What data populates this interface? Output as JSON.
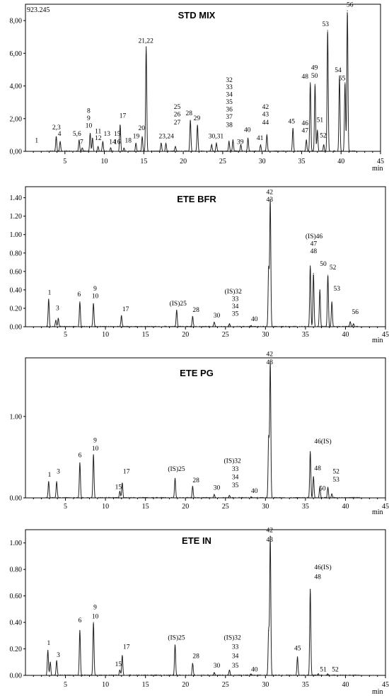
{
  "chart_data": [
    {
      "type": "line",
      "title": "STD MIX",
      "xlabel": "min",
      "xlim": [
        0,
        45
      ],
      "ylim": [
        0,
        9.0
      ],
      "x_ticks": [
        5,
        10,
        15,
        20,
        25,
        30,
        35,
        40,
        45
      ],
      "y_ticks": [
        0,
        2,
        4,
        6,
        8
      ],
      "y_tick_labels": [
        "0,00",
        "2,00",
        "4,00",
        "6,00",
        "8,00"
      ],
      "max_label": "923.245",
      "peaks": [
        {
          "rt": 3.9,
          "h": 0.9
        },
        {
          "rt": 4.4,
          "h": 0.6
        },
        {
          "rt": 6.8,
          "h": 0.7
        },
        {
          "rt": 7.2,
          "h": 0.2
        },
        {
          "rt": 8.2,
          "h": 1.1
        },
        {
          "rt": 8.5,
          "h": 0.8
        },
        {
          "rt": 9.2,
          "h": 0.3
        },
        {
          "rt": 9.8,
          "h": 0.6
        },
        {
          "rt": 10.8,
          "h": 0.2
        },
        {
          "rt": 12.0,
          "h": 1.6
        },
        {
          "rt": 12.5,
          "h": 0.2
        },
        {
          "rt": 14.0,
          "h": 0.5
        },
        {
          "rt": 14.8,
          "h": 0.9
        },
        {
          "rt": 15.3,
          "h": 6.4
        },
        {
          "rt": 17.2,
          "h": 0.5
        },
        {
          "rt": 17.8,
          "h": 0.5
        },
        {
          "rt": 19.0,
          "h": 0.3
        },
        {
          "rt": 20.9,
          "h": 1.9
        },
        {
          "rt": 21.8,
          "h": 1.6
        },
        {
          "rt": 23.6,
          "h": 0.4
        },
        {
          "rt": 24.2,
          "h": 0.5
        },
        {
          "rt": 25.8,
          "h": 0.6
        },
        {
          "rt": 26.3,
          "h": 0.7
        },
        {
          "rt": 27.3,
          "h": 0.4
        },
        {
          "rt": 28.2,
          "h": 0.8
        },
        {
          "rt": 29.8,
          "h": 0.4
        },
        {
          "rt": 30.6,
          "h": 1.0
        },
        {
          "rt": 33.9,
          "h": 1.4
        },
        {
          "rt": 35.6,
          "h": 0.7
        },
        {
          "rt": 36.1,
          "h": 4.2
        },
        {
          "rt": 36.7,
          "h": 4.1
        },
        {
          "rt": 37.0,
          "h": 1.3
        },
        {
          "rt": 37.8,
          "h": 0.4
        },
        {
          "rt": 38.3,
          "h": 7.4
        },
        {
          "rt": 39.8,
          "h": 4.6
        },
        {
          "rt": 40.5,
          "h": 4.2
        },
        {
          "rt": 40.8,
          "h": 8.6
        }
      ],
      "labels": [
        {
          "text": "1",
          "x": 1.2,
          "y": 0.55
        },
        {
          "text": "2,3",
          "x": 3.4,
          "y": 1.35
        },
        {
          "text": "4",
          "x": 4.1,
          "y": 0.95
        },
        {
          "text": "5,6",
          "x": 6.0,
          "y": 0.95
        },
        {
          "text": "7",
          "x": 6.9,
          "y": 0.45
        },
        {
          "text": "8",
          "x": 7.8,
          "y": 2.35
        },
        {
          "text": "9",
          "x": 7.8,
          "y": 1.9
        },
        {
          "text": "10",
          "x": 7.6,
          "y": 1.45
        },
        {
          "text": "11",
          "x": 8.8,
          "y": 1.1
        },
        {
          "text": "12",
          "x": 8.8,
          "y": 0.7
        },
        {
          "text": "13",
          "x": 9.9,
          "y": 0.95
        },
        {
          "text": "14",
          "x": 10.6,
          "y": 0.45
        },
        {
          "text": "15",
          "x": 11.2,
          "y": 0.95
        },
        {
          "text": "16",
          "x": 11.2,
          "y": 0.45
        },
        {
          "text": "17",
          "x": 11.9,
          "y": 2.05
        },
        {
          "text": "18",
          "x": 12.6,
          "y": 0.55
        },
        {
          "text": "19",
          "x": 13.6,
          "y": 0.8
        },
        {
          "text": "20",
          "x": 14.3,
          "y": 1.3
        },
        {
          "text": "21,22",
          "x": 14.3,
          "y": 6.65
        },
        {
          "text": "23,24",
          "x": 16.9,
          "y": 0.8
        },
        {
          "text": "25",
          "x": 18.8,
          "y": 2.6
        },
        {
          "text": "26",
          "x": 18.8,
          "y": 2.15
        },
        {
          "text": "27",
          "x": 18.8,
          "y": 1.65
        },
        {
          "text": "28",
          "x": 20.3,
          "y": 2.2
        },
        {
          "text": "29",
          "x": 21.3,
          "y": 1.9
        },
        {
          "text": "30,31",
          "x": 23.2,
          "y": 0.8
        },
        {
          "text": "32",
          "x": 25.4,
          "y": 4.25
        },
        {
          "text": "33",
          "x": 25.4,
          "y": 3.8
        },
        {
          "text": "34",
          "x": 25.4,
          "y": 3.35
        },
        {
          "text": "35",
          "x": 25.4,
          "y": 2.9
        },
        {
          "text": "36",
          "x": 25.4,
          "y": 2.45
        },
        {
          "text": "37",
          "x": 25.4,
          "y": 2.0
        },
        {
          "text": "38",
          "x": 25.4,
          "y": 1.5
        },
        {
          "text": "39",
          "x": 26.8,
          "y": 0.45
        },
        {
          "text": "40",
          "x": 27.7,
          "y": 1.2
        },
        {
          "text": "41",
          "x": 29.3,
          "y": 0.7
        },
        {
          "text": "42",
          "x": 30.0,
          "y": 2.6
        },
        {
          "text": "43",
          "x": 30.0,
          "y": 2.15
        },
        {
          "text": "44",
          "x": 30.0,
          "y": 1.65
        },
        {
          "text": "45",
          "x": 33.3,
          "y": 1.7
        },
        {
          "text": "46",
          "x": 35.0,
          "y": 1.6
        },
        {
          "text": "47",
          "x": 35.0,
          "y": 1.15
        },
        {
          "text": "48",
          "x": 35.0,
          "y": 4.45
        },
        {
          "text": "49",
          "x": 36.2,
          "y": 5.0
        },
        {
          "text": "50",
          "x": 36.2,
          "y": 4.5
        },
        {
          "text": "51",
          "x": 36.9,
          "y": 1.8
        },
        {
          "text": "52",
          "x": 37.3,
          "y": 0.85
        },
        {
          "text": "53",
          "x": 37.6,
          "y": 7.65
        },
        {
          "text": "54",
          "x": 39.2,
          "y": 4.85
        },
        {
          "text": "55",
          "x": 39.7,
          "y": 4.35
        },
        {
          "text": "56",
          "x": 40.7,
          "y": 8.85
        }
      ]
    },
    {
      "type": "line",
      "title": "ETE BFR",
      "xlabel": "min",
      "xlim": [
        0,
        45
      ],
      "ylim": [
        0,
        1.52
      ],
      "x_ticks": [
        5,
        10,
        15,
        20,
        25,
        30,
        35,
        40,
        45
      ],
      "y_ticks": [
        0,
        0.2,
        0.4,
        0.6,
        0.8,
        1.0,
        1.2,
        1.4
      ],
      "y_tick_labels": [
        "0.00",
        "0.20",
        "0.40",
        "0.60",
        "0.80",
        "1.00",
        "1.20",
        "1.40"
      ],
      "peaks": [
        {
          "rt": 2.9,
          "h": 0.3
        },
        {
          "rt": 3.8,
          "h": 0.07
        },
        {
          "rt": 4.1,
          "h": 0.09
        },
        {
          "rt": 6.8,
          "h": 0.27
        },
        {
          "rt": 8.5,
          "h": 0.25
        },
        {
          "rt": 12.0,
          "h": 0.12
        },
        {
          "rt": 18.9,
          "h": 0.18
        },
        {
          "rt": 20.9,
          "h": 0.11
        },
        {
          "rt": 23.6,
          "h": 0.05
        },
        {
          "rt": 25.5,
          "h": 0.03
        },
        {
          "rt": 28.2,
          "h": 0.01
        },
        {
          "rt": 30.4,
          "h": 0.64
        },
        {
          "rt": 30.6,
          "h": 1.38
        },
        {
          "rt": 35.6,
          "h": 0.66
        },
        {
          "rt": 36.0,
          "h": 0.58
        },
        {
          "rt": 36.8,
          "h": 0.4
        },
        {
          "rt": 37.8,
          "h": 0.56
        },
        {
          "rt": 38.3,
          "h": 0.27
        },
        {
          "rt": 40.6,
          "h": 0.05
        },
        {
          "rt": 41.0,
          "h": 0.03
        }
      ],
      "labels": [
        {
          "text": "1",
          "x": 2.8,
          "y": 0.35
        },
        {
          "text": "3",
          "x": 3.8,
          "y": 0.18
        },
        {
          "text": "6",
          "x": 6.5,
          "y": 0.33
        },
        {
          "text": "9",
          "x": 8.5,
          "y": 0.39
        },
        {
          "text": "10",
          "x": 8.3,
          "y": 0.31
        },
        {
          "text": "17",
          "x": 12.1,
          "y": 0.17
        },
        {
          "text": "(IS)25",
          "x": 18.0,
          "y": 0.23
        },
        {
          "text": "28",
          "x": 20.9,
          "y": 0.16
        },
        {
          "text": "30",
          "x": 23.5,
          "y": 0.1
        },
        {
          "text": "(IS)32",
          "x": 24.9,
          "y": 0.36
        },
        {
          "text": "33",
          "x": 25.8,
          "y": 0.28
        },
        {
          "text": "34",
          "x": 25.8,
          "y": 0.2
        },
        {
          "text": "35",
          "x": 25.8,
          "y": 0.12
        },
        {
          "text": "40",
          "x": 28.2,
          "y": 0.06
        },
        {
          "text": "42",
          "x": 30.1,
          "y": 1.44
        },
        {
          "text": "43",
          "x": 30.1,
          "y": 1.36
        },
        {
          "text": "(IS)46",
          "x": 35.0,
          "y": 0.96
        },
        {
          "text": "47",
          "x": 35.6,
          "y": 0.88
        },
        {
          "text": "48",
          "x": 35.6,
          "y": 0.8
        },
        {
          "text": "50",
          "x": 36.8,
          "y": 0.66
        },
        {
          "text": "52",
          "x": 38.0,
          "y": 0.62
        },
        {
          "text": "53",
          "x": 38.5,
          "y": 0.39
        },
        {
          "text": "56",
          "x": 40.8,
          "y": 0.14
        }
      ]
    },
    {
      "type": "line",
      "title": "ETE PG",
      "xlabel": "min",
      "xlim": [
        0,
        45
      ],
      "ylim": [
        0,
        1.72
      ],
      "x_ticks": [
        5,
        10,
        15,
        20,
        25,
        30,
        35,
        40,
        45
      ],
      "y_ticks": [
        0,
        1.0
      ],
      "y_tick_labels": [
        "0.00",
        "1.00"
      ],
      "peaks": [
        {
          "rt": 2.9,
          "h": 0.2
        },
        {
          "rt": 3.9,
          "h": 0.2
        },
        {
          "rt": 6.8,
          "h": 0.43
        },
        {
          "rt": 8.5,
          "h": 0.53
        },
        {
          "rt": 11.8,
          "h": 0.08
        },
        {
          "rt": 12.1,
          "h": 0.18
        },
        {
          "rt": 18.7,
          "h": 0.24
        },
        {
          "rt": 20.9,
          "h": 0.14
        },
        {
          "rt": 23.6,
          "h": 0.04
        },
        {
          "rt": 25.5,
          "h": 0.03
        },
        {
          "rt": 28.2,
          "h": 0.01
        },
        {
          "rt": 30.4,
          "h": 0.74
        },
        {
          "rt": 30.6,
          "h": 1.68
        },
        {
          "rt": 35.6,
          "h": 0.57
        },
        {
          "rt": 36.0,
          "h": 0.26
        },
        {
          "rt": 36.8,
          "h": 0.13
        },
        {
          "rt": 37.8,
          "h": 0.13
        },
        {
          "rt": 38.3,
          "h": 0.05
        }
      ],
      "labels": [
        {
          "text": "1",
          "x": 2.8,
          "y": 0.26
        },
        {
          "text": "3",
          "x": 3.9,
          "y": 0.3
        },
        {
          "text": "6",
          "x": 6.6,
          "y": 0.5
        },
        {
          "text": "9",
          "x": 8.5,
          "y": 0.68
        },
        {
          "text": "10",
          "x": 8.3,
          "y": 0.58
        },
        {
          "text": "15",
          "x": 11.2,
          "y": 0.11
        },
        {
          "text": "17",
          "x": 12.2,
          "y": 0.3
        },
        {
          "text": "(IS)25",
          "x": 17.8,
          "y": 0.33
        },
        {
          "text": "28",
          "x": 20.9,
          "y": 0.19
        },
        {
          "text": "30",
          "x": 23.5,
          "y": 0.1
        },
        {
          "text": "(IS)32",
          "x": 24.8,
          "y": 0.43
        },
        {
          "text": "33",
          "x": 25.8,
          "y": 0.33
        },
        {
          "text": "34",
          "x": 25.8,
          "y": 0.23
        },
        {
          "text": "35",
          "x": 25.8,
          "y": 0.13
        },
        {
          "text": "40",
          "x": 28.2,
          "y": 0.06
        },
        {
          "text": "42",
          "x": 30.1,
          "y": 1.74
        },
        {
          "text": "43",
          "x": 30.1,
          "y": 1.64
        },
        {
          "text": "46(IS)",
          "x": 36.1,
          "y": 0.67
        },
        {
          "text": "48",
          "x": 36.1,
          "y": 0.34
        },
        {
          "text": "50",
          "x": 36.7,
          "y": 0.09
        },
        {
          "text": "52",
          "x": 38.4,
          "y": 0.3
        },
        {
          "text": "53",
          "x": 38.4,
          "y": 0.2
        }
      ]
    },
    {
      "type": "line",
      "title": "ETE IN",
      "xlabel": "min",
      "xlim": [
        0,
        45
      ],
      "ylim": [
        0,
        1.1
      ],
      "x_ticks": [
        5,
        10,
        15,
        20,
        25,
        30,
        35,
        40,
        45
      ],
      "y_ticks": [
        0,
        0.2,
        0.4,
        0.6,
        0.8,
        1.0
      ],
      "y_tick_labels": [
        "0.00",
        "0.20",
        "0.40",
        "0.60",
        "0.80",
        "1.00"
      ],
      "peaks": [
        {
          "rt": 2.8,
          "h": 0.19
        },
        {
          "rt": 3.1,
          "h": 0.1
        },
        {
          "rt": 3.9,
          "h": 0.11
        },
        {
          "rt": 6.8,
          "h": 0.34
        },
        {
          "rt": 8.5,
          "h": 0.4
        },
        {
          "rt": 11.8,
          "h": 0.04
        },
        {
          "rt": 12.1,
          "h": 0.15
        },
        {
          "rt": 18.7,
          "h": 0.23
        },
        {
          "rt": 20.9,
          "h": 0.09
        },
        {
          "rt": 23.6,
          "h": 0.02
        },
        {
          "rt": 25.5,
          "h": 0.04
        },
        {
          "rt": 28.2,
          "h": 0.01
        },
        {
          "rt": 30.4,
          "h": 0.34
        },
        {
          "rt": 30.6,
          "h": 1.05
        },
        {
          "rt": 34.0,
          "h": 0.14
        },
        {
          "rt": 35.6,
          "h": 0.65
        },
        {
          "rt": 36.6,
          "h": 0.01
        },
        {
          "rt": 37.8,
          "h": 0.01
        }
      ],
      "labels": [
        {
          "text": "1",
          "x": 2.7,
          "y": 0.23
        },
        {
          "text": "3",
          "x": 3.9,
          "y": 0.14
        },
        {
          "text": "6",
          "x": 6.6,
          "y": 0.4
        },
        {
          "text": "9",
          "x": 8.5,
          "y": 0.5
        },
        {
          "text": "10",
          "x": 8.3,
          "y": 0.43
        },
        {
          "text": "15",
          "x": 11.2,
          "y": 0.07
        },
        {
          "text": "17",
          "x": 12.2,
          "y": 0.2
        },
        {
          "text": "(IS)25",
          "x": 17.8,
          "y": 0.27
        },
        {
          "text": "28",
          "x": 20.9,
          "y": 0.13
        },
        {
          "text": "30",
          "x": 23.5,
          "y": 0.06
        },
        {
          "text": "(IS)32",
          "x": 24.8,
          "y": 0.27
        },
        {
          "text": "33",
          "x": 25.8,
          "y": 0.2
        },
        {
          "text": "34",
          "x": 25.8,
          "y": 0.13
        },
        {
          "text": "35",
          "x": 25.8,
          "y": 0.06
        },
        {
          "text": "40",
          "x": 28.2,
          "y": 0.03
        },
        {
          "text": "42",
          "x": 30.1,
          "y": 1.08
        },
        {
          "text": "43",
          "x": 30.1,
          "y": 1.01
        },
        {
          "text": "45",
          "x": 33.6,
          "y": 0.19
        },
        {
          "text": "46(IS)",
          "x": 36.1,
          "y": 0.8
        },
        {
          "text": "48",
          "x": 36.1,
          "y": 0.73
        },
        {
          "text": "51",
          "x": 36.8,
          "y": 0.03
        },
        {
          "text": "52",
          "x": 38.3,
          "y": 0.03
        }
      ]
    }
  ]
}
